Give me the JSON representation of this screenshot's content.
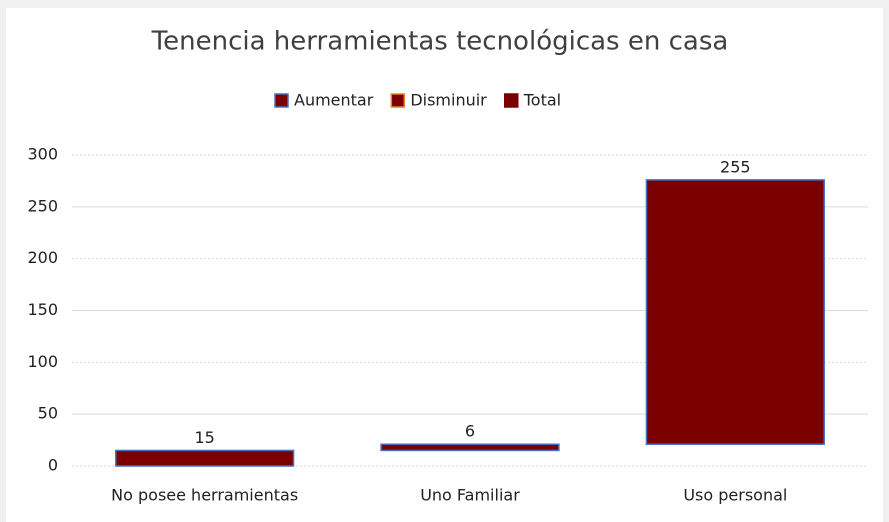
{
  "chart_data": {
    "type": "waterfall",
    "title": "Tenencia herramientas tecnológicas en casa",
    "legend": [
      {
        "name": "Aumentar",
        "color": "#7b0000",
        "edge": "#4472c4"
      },
      {
        "name": "Disminuir",
        "color": "#7b0000",
        "edge": "#ed7d31"
      },
      {
        "name": "Total",
        "color": "#7b0000",
        "edge": "#7b0000"
      }
    ],
    "categories": [
      "No posee herramientas",
      "Uno Familiar",
      "Uso personal"
    ],
    "values": [
      15,
      6,
      255
    ],
    "color": "#7b0000",
    "edge": "#4472c4",
    "ylim": [
      0,
      300
    ],
    "yticks": [
      0,
      50,
      100,
      150,
      200,
      250,
      300
    ],
    "grid": true
  }
}
